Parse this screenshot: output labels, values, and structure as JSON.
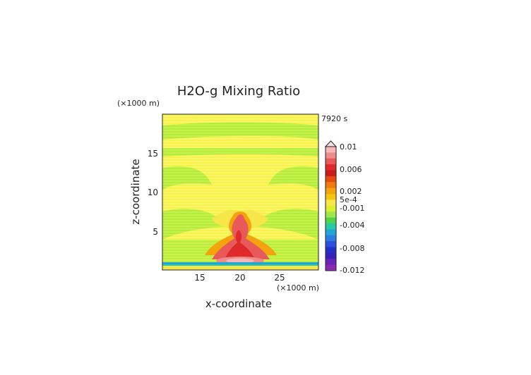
{
  "chart_data": {
    "type": "heatmap",
    "title": "H2O-g Mixing Ratio",
    "time_label": "7920 s",
    "xlabel": "x-coordinate",
    "ylabel": "z-coordinate",
    "x_unit": "(×1000 m)",
    "y_unit": "(×1000 m)",
    "xlim": [
      10,
      30
    ],
    "ylim": [
      0,
      20
    ],
    "x_ticks": [
      15,
      20,
      25
    ],
    "y_ticks": [
      5,
      10,
      15
    ],
    "colorbar": {
      "labels": [
        "0.01",
        "0.006",
        "0.002",
        "5e-4",
        "-0.001",
        "-0.004",
        "-0.008",
        "-0.012"
      ],
      "colors": [
        "#f4b6b6",
        "#ef8a8a",
        "#e85a5a",
        "#e02a2a",
        "#c81d1d",
        "#e54a12",
        "#f07a10",
        "#f4a20d",
        "#f5c40d",
        "#f6e64a",
        "#d9ef2f",
        "#9ee64a",
        "#4fd44a",
        "#27c9a8",
        "#22a6d8",
        "#2a7ee0",
        "#2a4fe0",
        "#2230c8",
        "#3a20b8",
        "#6a22b8",
        "#8a2ab0"
      ]
    }
  }
}
